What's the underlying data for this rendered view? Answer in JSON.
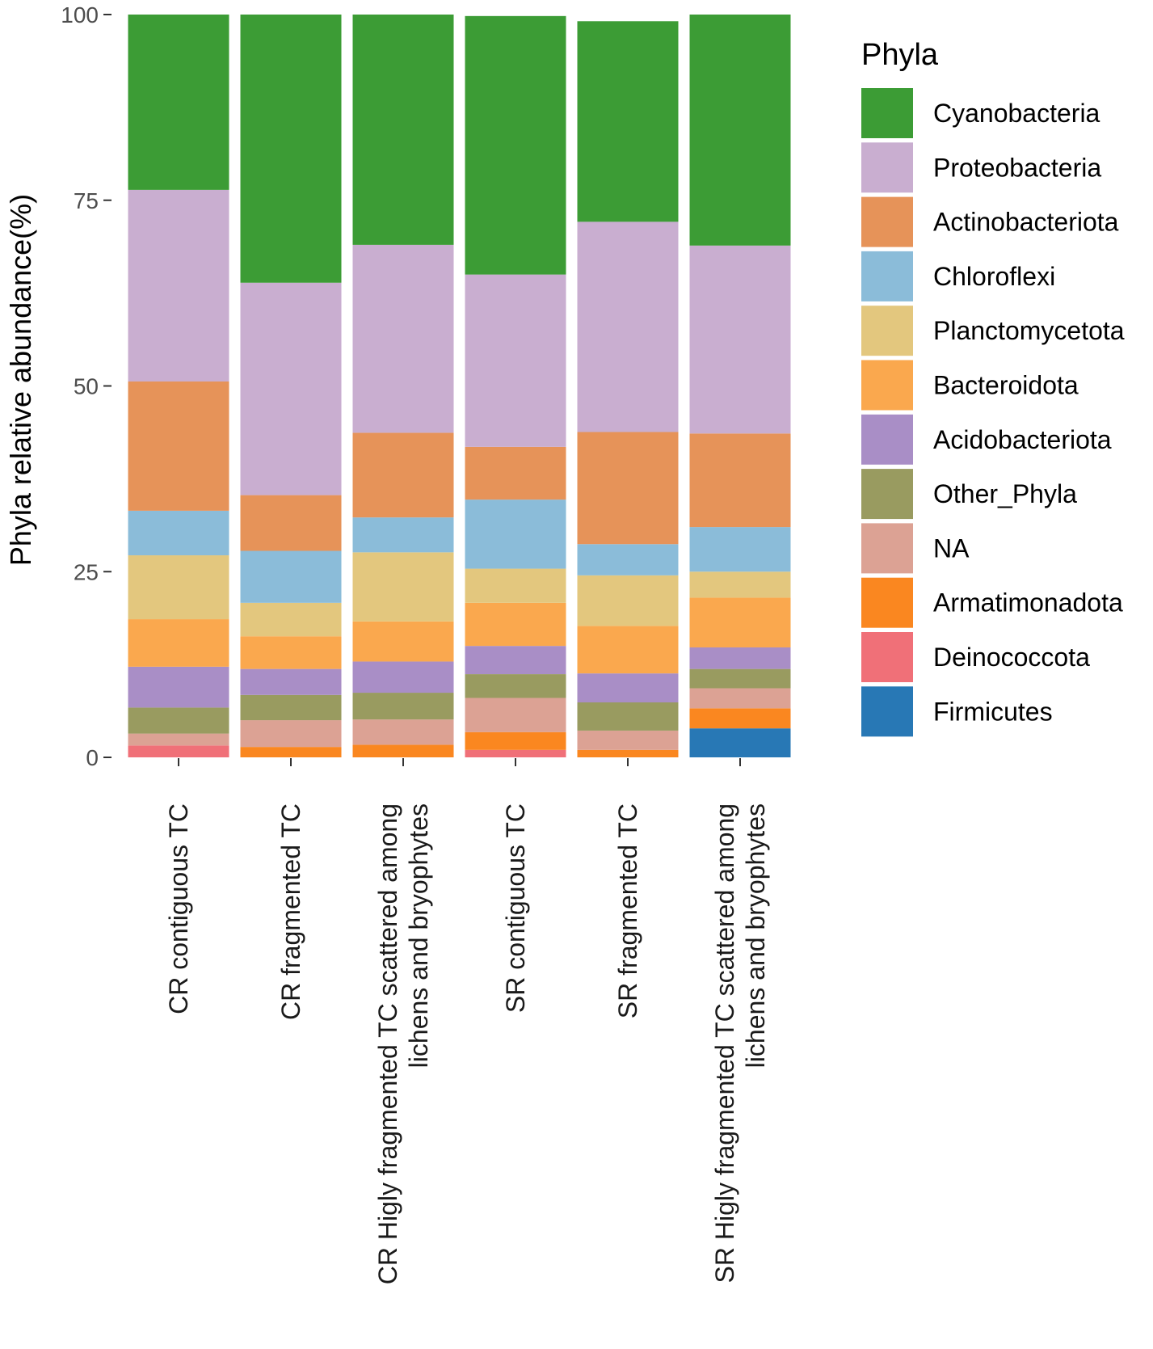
{
  "chart_data": {
    "type": "bar",
    "stacked": true,
    "title": "",
    "xlabel": "",
    "ylabel": "Phyla relative abundance(%)",
    "ylim": [
      0,
      100
    ],
    "yticks": [
      0,
      25,
      50,
      75,
      100
    ],
    "legend_title": "Phyla",
    "legend_position": "right",
    "categories": [
      "CR contiguous TC",
      "CR fragmented TC",
      "CR Higly fragmented TC scattered among lichens and bryophytes",
      "SR contiguous TC",
      "SR fragmented TC",
      "SR Higly fragmented TC scattered among lichens and bryophytes"
    ],
    "category_lines": [
      [
        "CR contiguous TC"
      ],
      [
        "CR fragmented TC"
      ],
      [
        "CR Higly fragmented TC scattered among",
        "lichens and bryophytes"
      ],
      [
        "SR contiguous TC"
      ],
      [
        "SR fragmented TC"
      ],
      [
        "SR Higly fragmented TC scattered among",
        "lichens and bryophytes"
      ]
    ],
    "series": [
      {
        "name": "Firmicutes",
        "color": "#2878b5",
        "values": [
          0.0,
          0.0,
          0.0,
          0.0,
          0.0,
          3.9
        ]
      },
      {
        "name": "Deinococcota",
        "color": "#f07078",
        "values": [
          1.6,
          0.0,
          0.0,
          1.0,
          0.0,
          0.0
        ]
      },
      {
        "name": "Armatimonadota",
        "color": "#fa8720",
        "values": [
          0.0,
          1.4,
          1.7,
          2.4,
          1.0,
          2.7
        ]
      },
      {
        "name": "NA",
        "color": "#dca294",
        "values": [
          1.6,
          3.6,
          3.4,
          4.6,
          2.6,
          2.7
        ]
      },
      {
        "name": "Other_Phyla",
        "color": "#999b60",
        "values": [
          3.5,
          3.4,
          3.6,
          3.2,
          3.8,
          2.6
        ]
      },
      {
        "name": "Acidobacteriota",
        "color": "#a98ec6",
        "values": [
          5.5,
          3.5,
          4.2,
          3.8,
          3.9,
          2.9
        ]
      },
      {
        "name": "Bacteroidota",
        "color": "#faa84e",
        "values": [
          6.4,
          4.4,
          5.4,
          5.8,
          6.4,
          6.7
        ]
      },
      {
        "name": "Planctomycetota",
        "color": "#e3c77e",
        "values": [
          8.6,
          4.5,
          9.3,
          4.6,
          6.8,
          3.5
        ]
      },
      {
        "name": "Chloroflexi",
        "color": "#8bbcd9",
        "values": [
          6.0,
          7.0,
          4.7,
          9.3,
          4.2,
          6.0
        ]
      },
      {
        "name": "Actinobacteriota",
        "color": "#e69359",
        "values": [
          17.4,
          7.5,
          11.4,
          7.1,
          15.1,
          12.6
        ]
      },
      {
        "name": "Proteobacteria",
        "color": "#c9aed0",
        "values": [
          25.8,
          28.6,
          25.3,
          23.2,
          28.3,
          25.3
        ]
      },
      {
        "name": "Cyanobacteria",
        "color": "#3c9c35",
        "values": [
          23.6,
          36.1,
          31.0,
          34.8,
          27.0,
          31.1
        ]
      }
    ],
    "legend_order": [
      "Cyanobacteria",
      "Proteobacteria",
      "Actinobacteriota",
      "Chloroflexi",
      "Planctomycetota",
      "Bacteroidota",
      "Acidobacteriota",
      "Other_Phyla",
      "NA",
      "Armatimonadota",
      "Deinococcota",
      "Firmicutes"
    ]
  }
}
